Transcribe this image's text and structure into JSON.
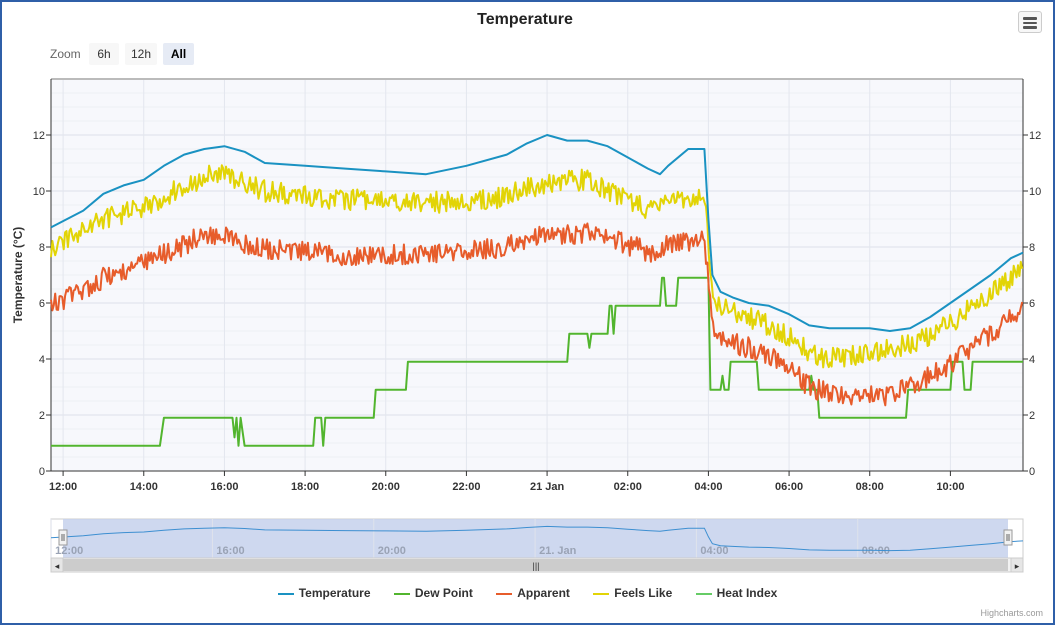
{
  "chart_data": {
    "type": "line",
    "title": "Temperature",
    "ylabel": "Temperature (°C)",
    "ylim": [
      0,
      14
    ],
    "y_ticks": [
      0,
      2,
      4,
      6,
      8,
      10,
      12
    ],
    "x_unit": "hours since 00:00 on 20 Jan",
    "xlim": [
      11.7,
      35.8
    ],
    "x_ticks": [
      {
        "x": 12,
        "label": "12:00"
      },
      {
        "x": 14,
        "label": "14:00"
      },
      {
        "x": 16,
        "label": "16:00"
      },
      {
        "x": 18,
        "label": "18:00"
      },
      {
        "x": 20,
        "label": "20:00"
      },
      {
        "x": 22,
        "label": "22:00"
      },
      {
        "x": 24,
        "label": "21 Jan"
      },
      {
        "x": 26,
        "label": "02:00"
      },
      {
        "x": 28,
        "label": "04:00"
      },
      {
        "x": 30,
        "label": "06:00"
      },
      {
        "x": 32,
        "label": "08:00"
      },
      {
        "x": 34,
        "label": "10:00"
      }
    ],
    "grid": true,
    "legend_position": "bottom-center",
    "series": [
      {
        "name": "Temperature",
        "color": "#1a92c2",
        "noise": 0,
        "points": [
          [
            11.7,
            8.7
          ],
          [
            12.5,
            9.3
          ],
          [
            13,
            9.9
          ],
          [
            13.5,
            10.2
          ],
          [
            14,
            10.4
          ],
          [
            14.5,
            10.9
          ],
          [
            15,
            11.3
          ],
          [
            15.5,
            11.5
          ],
          [
            16,
            11.6
          ],
          [
            16.5,
            11.4
          ],
          [
            17,
            11.0
          ],
          [
            18,
            10.9
          ],
          [
            19,
            10.8
          ],
          [
            20,
            10.7
          ],
          [
            21,
            10.6
          ],
          [
            22,
            10.9
          ],
          [
            23,
            11.3
          ],
          [
            23.5,
            11.7
          ],
          [
            24,
            12.0
          ],
          [
            24.5,
            11.8
          ],
          [
            25,
            11.8
          ],
          [
            25.5,
            11.6
          ],
          [
            26,
            11.2
          ],
          [
            26.5,
            10.8
          ],
          [
            26.8,
            10.6
          ],
          [
            27,
            10.9
          ],
          [
            27.5,
            11.5
          ],
          [
            27.9,
            11.5
          ],
          [
            28.0,
            9.0
          ],
          [
            28.1,
            7.0
          ],
          [
            28.3,
            6.4
          ],
          [
            28.6,
            6.2
          ],
          [
            29,
            6.0
          ],
          [
            29.5,
            5.9
          ],
          [
            30,
            5.6
          ],
          [
            30.5,
            5.2
          ],
          [
            31,
            5.1
          ],
          [
            31.5,
            5.1
          ],
          [
            32,
            5.1
          ],
          [
            32.5,
            5.0
          ],
          [
            33,
            5.1
          ],
          [
            33.5,
            5.5
          ],
          [
            34,
            6.0
          ],
          [
            34.5,
            6.5
          ],
          [
            35,
            7.0
          ],
          [
            35.5,
            7.6
          ],
          [
            35.8,
            7.8
          ]
        ]
      },
      {
        "name": "Dew Point",
        "color": "#52b52e",
        "noise": 0,
        "points": [
          [
            11.7,
            0.9
          ],
          [
            14.4,
            0.9
          ],
          [
            14.5,
            1.9
          ],
          [
            16.2,
            1.9
          ],
          [
            16.25,
            1.2
          ],
          [
            16.3,
            1.9
          ],
          [
            16.35,
            0.9
          ],
          [
            16.4,
            1.9
          ],
          [
            16.5,
            0.9
          ],
          [
            18.2,
            0.9
          ],
          [
            18.25,
            1.9
          ],
          [
            18.4,
            1.9
          ],
          [
            18.45,
            0.9
          ],
          [
            18.5,
            1.9
          ],
          [
            19.7,
            1.9
          ],
          [
            19.75,
            2.9
          ],
          [
            20.5,
            2.9
          ],
          [
            20.55,
            3.9
          ],
          [
            24.5,
            3.9
          ],
          [
            24.55,
            4.9
          ],
          [
            25.0,
            4.9
          ],
          [
            25.05,
            4.4
          ],
          [
            25.1,
            4.9
          ],
          [
            25.5,
            4.9
          ],
          [
            25.55,
            5.9
          ],
          [
            25.6,
            5.9
          ],
          [
            25.65,
            4.9
          ],
          [
            25.7,
            5.9
          ],
          [
            26.8,
            5.9
          ],
          [
            26.85,
            6.9
          ],
          [
            26.9,
            6.9
          ],
          [
            26.95,
            5.9
          ],
          [
            27.2,
            5.9
          ],
          [
            27.25,
            6.9
          ],
          [
            28.0,
            6.9
          ],
          [
            28.05,
            2.9
          ],
          [
            28.3,
            2.9
          ],
          [
            28.35,
            3.4
          ],
          [
            28.4,
            2.9
          ],
          [
            28.5,
            2.9
          ],
          [
            28.55,
            3.9
          ],
          [
            29.2,
            3.9
          ],
          [
            29.25,
            2.9
          ],
          [
            30.5,
            2.9
          ],
          [
            30.55,
            3.4
          ],
          [
            30.6,
            2.9
          ],
          [
            30.7,
            2.9
          ],
          [
            30.75,
            1.9
          ],
          [
            32.9,
            1.9
          ],
          [
            32.95,
            2.9
          ],
          [
            34.0,
            2.9
          ],
          [
            34.05,
            3.9
          ],
          [
            34.3,
            3.9
          ],
          [
            34.35,
            2.9
          ],
          [
            34.5,
            2.9
          ],
          [
            34.55,
            3.9
          ],
          [
            35.8,
            3.9
          ]
        ]
      },
      {
        "name": "Apparent",
        "color": "#e75c2b",
        "noise": 0.55,
        "points": [
          [
            11.7,
            5.9
          ],
          [
            12.5,
            6.5
          ],
          [
            13,
            6.9
          ],
          [
            14,
            7.4
          ],
          [
            15,
            8.1
          ],
          [
            15.5,
            8.4
          ],
          [
            16,
            8.4
          ],
          [
            16.5,
            8.1
          ],
          [
            17,
            7.9
          ],
          [
            18,
            7.8
          ],
          [
            19,
            7.7
          ],
          [
            20,
            7.7
          ],
          [
            21,
            7.8
          ],
          [
            22,
            7.8
          ],
          [
            23,
            8.0
          ],
          [
            23.5,
            8.3
          ],
          [
            24,
            8.4
          ],
          [
            25,
            8.5
          ],
          [
            25.5,
            8.3
          ],
          [
            26,
            8.1
          ],
          [
            26.5,
            7.8
          ],
          [
            27,
            8.1
          ],
          [
            27.5,
            8.2
          ],
          [
            27.9,
            8.2
          ],
          [
            28.0,
            7.0
          ],
          [
            28.1,
            5.0
          ],
          [
            28.3,
            4.8
          ],
          [
            28.6,
            4.6
          ],
          [
            29,
            4.4
          ],
          [
            29.5,
            4.2
          ],
          [
            30,
            3.7
          ],
          [
            30.5,
            3.0
          ],
          [
            31,
            2.8
          ],
          [
            31.5,
            2.7
          ],
          [
            32,
            2.7
          ],
          [
            32.5,
            2.7
          ],
          [
            33,
            3.0
          ],
          [
            33.5,
            3.4
          ],
          [
            34,
            3.8
          ],
          [
            34.5,
            4.4
          ],
          [
            35,
            4.9
          ],
          [
            35.5,
            5.5
          ],
          [
            35.8,
            5.9
          ]
        ]
      },
      {
        "name": "Feels Like",
        "color": "#e2d406",
        "noise": 0.55,
        "points": [
          [
            11.7,
            7.9
          ],
          [
            12.5,
            8.6
          ],
          [
            13,
            9.0
          ],
          [
            14,
            9.4
          ],
          [
            15,
            10.2
          ],
          [
            15.5,
            10.5
          ],
          [
            16,
            10.6
          ],
          [
            16.5,
            10.3
          ],
          [
            17,
            10.0
          ],
          [
            18,
            9.8
          ],
          [
            19,
            9.7
          ],
          [
            20,
            9.6
          ],
          [
            21,
            9.6
          ],
          [
            22,
            9.6
          ],
          [
            23,
            9.8
          ],
          [
            23.5,
            10.1
          ],
          [
            24,
            10.3
          ],
          [
            25,
            10.4
          ],
          [
            25.5,
            10.0
          ],
          [
            26,
            9.7
          ],
          [
            26.5,
            9.3
          ],
          [
            27,
            9.6
          ],
          [
            27.5,
            9.8
          ],
          [
            27.9,
            9.8
          ],
          [
            28.0,
            8.2
          ],
          [
            28.1,
            6.2
          ],
          [
            28.3,
            5.9
          ],
          [
            28.6,
            5.7
          ],
          [
            29,
            5.5
          ],
          [
            29.5,
            5.2
          ],
          [
            30,
            4.8
          ],
          [
            30.5,
            4.2
          ],
          [
            31,
            4.0
          ],
          [
            31.5,
            4.1
          ],
          [
            32,
            4.2
          ],
          [
            32.5,
            4.4
          ],
          [
            33,
            4.5
          ],
          [
            33.5,
            4.9
          ],
          [
            34,
            5.3
          ],
          [
            34.5,
            5.8
          ],
          [
            35,
            6.3
          ],
          [
            35.5,
            6.9
          ],
          [
            35.8,
            7.4
          ]
        ]
      },
      {
        "name": "Heat Index",
        "color": "#66cc66",
        "noise": 0,
        "points": []
      }
    ],
    "navigator": {
      "tick_labels": [
        {
          "x": 12,
          "label": "12:00"
        },
        {
          "x": 16,
          "label": "16:00"
        },
        {
          "x": 20,
          "label": "20:00"
        },
        {
          "x": 24,
          "label": "21. Jan"
        },
        {
          "x": 28,
          "label": "04:00"
        },
        {
          "x": 32,
          "label": "08:00"
        }
      ]
    }
  },
  "zoom": {
    "label": "Zoom",
    "buttons": [
      {
        "label": "6h",
        "active": false
      },
      {
        "label": "12h",
        "active": false
      },
      {
        "label": "All",
        "active": true
      }
    ]
  },
  "legend": [
    {
      "label": "Temperature",
      "color": "#1a92c2"
    },
    {
      "label": "Dew Point",
      "color": "#52b52e"
    },
    {
      "label": "Apparent",
      "color": "#e75c2b"
    },
    {
      "label": "Feels Like",
      "color": "#e2d406"
    },
    {
      "label": "Heat Index",
      "color": "#66cc66"
    }
  ],
  "scrollbar": {
    "grip": "|||",
    "left_arrow": "◂",
    "right_arrow": "▸"
  },
  "credits": "Highcharts.com"
}
